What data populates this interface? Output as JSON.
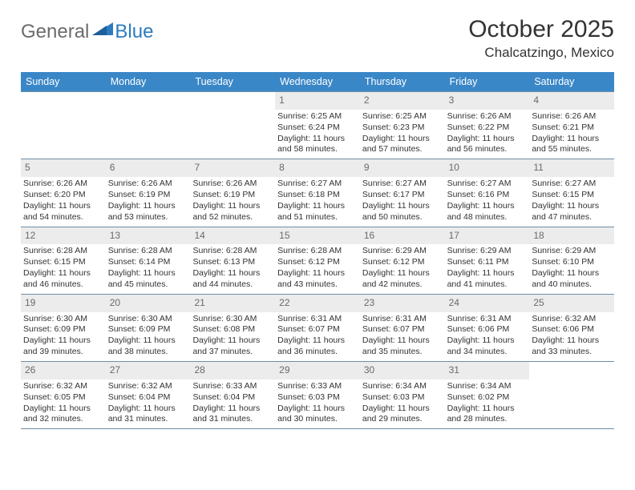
{
  "logo": {
    "general": "General",
    "blue": "Blue"
  },
  "title": "October 2025",
  "location": "Chalcatzingo, Mexico",
  "colors": {
    "header_bg": "#3a87c7",
    "daynum_bg": "#ececec",
    "border": "#6f8ea6",
    "text": "#333333",
    "logo_gray": "#6b6b6b",
    "logo_blue": "#2b7bbf"
  },
  "daysOfWeek": [
    "Sunday",
    "Monday",
    "Tuesday",
    "Wednesday",
    "Thursday",
    "Friday",
    "Saturday"
  ],
  "weeks": [
    [
      {
        "n": "",
        "e": true
      },
      {
        "n": "",
        "e": true
      },
      {
        "n": "",
        "e": true
      },
      {
        "n": "1",
        "sr": "6:25 AM",
        "ss": "6:24 PM",
        "dl": "11 hours and 58 minutes."
      },
      {
        "n": "2",
        "sr": "6:25 AM",
        "ss": "6:23 PM",
        "dl": "11 hours and 57 minutes."
      },
      {
        "n": "3",
        "sr": "6:26 AM",
        "ss": "6:22 PM",
        "dl": "11 hours and 56 minutes."
      },
      {
        "n": "4",
        "sr": "6:26 AM",
        "ss": "6:21 PM",
        "dl": "11 hours and 55 minutes."
      }
    ],
    [
      {
        "n": "5",
        "sr": "6:26 AM",
        "ss": "6:20 PM",
        "dl": "11 hours and 54 minutes."
      },
      {
        "n": "6",
        "sr": "6:26 AM",
        "ss": "6:19 PM",
        "dl": "11 hours and 53 minutes."
      },
      {
        "n": "7",
        "sr": "6:26 AM",
        "ss": "6:19 PM",
        "dl": "11 hours and 52 minutes."
      },
      {
        "n": "8",
        "sr": "6:27 AM",
        "ss": "6:18 PM",
        "dl": "11 hours and 51 minutes."
      },
      {
        "n": "9",
        "sr": "6:27 AM",
        "ss": "6:17 PM",
        "dl": "11 hours and 50 minutes."
      },
      {
        "n": "10",
        "sr": "6:27 AM",
        "ss": "6:16 PM",
        "dl": "11 hours and 48 minutes."
      },
      {
        "n": "11",
        "sr": "6:27 AM",
        "ss": "6:15 PM",
        "dl": "11 hours and 47 minutes."
      }
    ],
    [
      {
        "n": "12",
        "sr": "6:28 AM",
        "ss": "6:15 PM",
        "dl": "11 hours and 46 minutes."
      },
      {
        "n": "13",
        "sr": "6:28 AM",
        "ss": "6:14 PM",
        "dl": "11 hours and 45 minutes."
      },
      {
        "n": "14",
        "sr": "6:28 AM",
        "ss": "6:13 PM",
        "dl": "11 hours and 44 minutes."
      },
      {
        "n": "15",
        "sr": "6:28 AM",
        "ss": "6:12 PM",
        "dl": "11 hours and 43 minutes."
      },
      {
        "n": "16",
        "sr": "6:29 AM",
        "ss": "6:12 PM",
        "dl": "11 hours and 42 minutes."
      },
      {
        "n": "17",
        "sr": "6:29 AM",
        "ss": "6:11 PM",
        "dl": "11 hours and 41 minutes."
      },
      {
        "n": "18",
        "sr": "6:29 AM",
        "ss": "6:10 PM",
        "dl": "11 hours and 40 minutes."
      }
    ],
    [
      {
        "n": "19",
        "sr": "6:30 AM",
        "ss": "6:09 PM",
        "dl": "11 hours and 39 minutes."
      },
      {
        "n": "20",
        "sr": "6:30 AM",
        "ss": "6:09 PM",
        "dl": "11 hours and 38 minutes."
      },
      {
        "n": "21",
        "sr": "6:30 AM",
        "ss": "6:08 PM",
        "dl": "11 hours and 37 minutes."
      },
      {
        "n": "22",
        "sr": "6:31 AM",
        "ss": "6:07 PM",
        "dl": "11 hours and 36 minutes."
      },
      {
        "n": "23",
        "sr": "6:31 AM",
        "ss": "6:07 PM",
        "dl": "11 hours and 35 minutes."
      },
      {
        "n": "24",
        "sr": "6:31 AM",
        "ss": "6:06 PM",
        "dl": "11 hours and 34 minutes."
      },
      {
        "n": "25",
        "sr": "6:32 AM",
        "ss": "6:06 PM",
        "dl": "11 hours and 33 minutes."
      }
    ],
    [
      {
        "n": "26",
        "sr": "6:32 AM",
        "ss": "6:05 PM",
        "dl": "11 hours and 32 minutes."
      },
      {
        "n": "27",
        "sr": "6:32 AM",
        "ss": "6:04 PM",
        "dl": "11 hours and 31 minutes."
      },
      {
        "n": "28",
        "sr": "6:33 AM",
        "ss": "6:04 PM",
        "dl": "11 hours and 31 minutes."
      },
      {
        "n": "29",
        "sr": "6:33 AM",
        "ss": "6:03 PM",
        "dl": "11 hours and 30 minutes."
      },
      {
        "n": "30",
        "sr": "6:34 AM",
        "ss": "6:03 PM",
        "dl": "11 hours and 29 minutes."
      },
      {
        "n": "31",
        "sr": "6:34 AM",
        "ss": "6:02 PM",
        "dl": "11 hours and 28 minutes."
      },
      {
        "n": "",
        "e": true
      }
    ]
  ],
  "labels": {
    "sunrise": "Sunrise:",
    "sunset": "Sunset:",
    "daylight": "Daylight:"
  }
}
